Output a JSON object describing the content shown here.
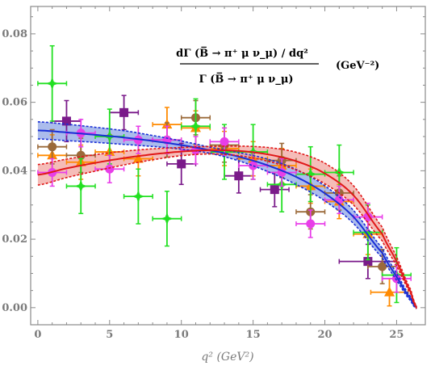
{
  "chart_data": {
    "type": "scatter",
    "title": "",
    "annotation": {
      "numerator": "dΓ (B̅ → π⁺ μ ν_μ) / dq²",
      "denominator": "Γ (B̅ → π⁺ μ ν_μ)",
      "unit": "(GeV⁻²)"
    },
    "xlabel": "q²  (GeV²)",
    "ylabel": "",
    "xlim": [
      -0.5,
      27.0
    ],
    "ylim": [
      -0.005,
      0.088
    ],
    "xticks": [
      "0",
      "5",
      "10",
      "15",
      "20",
      "25"
    ],
    "yticks": [
      "0.00",
      "0.02",
      "0.04",
      "0.06",
      "0.08"
    ],
    "colors": {
      "blue": "#1a2fd6",
      "blue_band": "#8fa6e6",
      "red": "#e01818",
      "red_band": "#f2a6a0",
      "purple": "#7a1a8a",
      "orange": "#ff8a00",
      "green": "#22e022",
      "magenta": "#e83ee8",
      "brown": "#9b6a3a"
    },
    "curves": [
      {
        "color": "blue",
        "x": [
          0,
          2,
          4,
          6,
          8,
          10,
          12,
          14,
          16,
          18,
          20,
          22,
          24,
          25,
          26,
          26.4
        ],
        "y": [
          0.0518,
          0.0512,
          0.0505,
          0.0497,
          0.0487,
          0.0475,
          0.046,
          0.0441,
          0.0416,
          0.0382,
          0.0334,
          0.0265,
          0.016,
          0.009,
          0.0025,
          0.0
        ],
        "band": [
          0.0025,
          0.0024,
          0.0022,
          0.002,
          0.0016,
          0.0012,
          0.0009,
          0.0012,
          0.0018,
          0.0022,
          0.0022,
          0.0019,
          0.0014,
          0.001,
          0.0006,
          0.0003
        ]
      },
      {
        "color": "red",
        "x": [
          0,
          2,
          4,
          6,
          8,
          10,
          12,
          14,
          16,
          18,
          20,
          22,
          24,
          25,
          26,
          26.4
        ],
        "y": [
          0.0388,
          0.0407,
          0.0423,
          0.0437,
          0.0448,
          0.0456,
          0.046,
          0.0458,
          0.0448,
          0.0428,
          0.0392,
          0.0328,
          0.0215,
          0.0135,
          0.0045,
          0.0
        ],
        "band": [
          0.003,
          0.0027,
          0.0024,
          0.002,
          0.0016,
          0.0012,
          0.0011,
          0.0014,
          0.002,
          0.0026,
          0.003,
          0.0028,
          0.002,
          0.0013,
          0.0006,
          0.0003
        ]
      }
    ],
    "series": [
      {
        "color": "purple",
        "marker": "square",
        "points": [
          {
            "x": 2,
            "y": 0.0545,
            "xe": 1,
            "ye": 0.006
          },
          {
            "x": 6,
            "y": 0.057,
            "xe": 1,
            "ye": 0.005
          },
          {
            "x": 10,
            "y": 0.042,
            "xe": 1,
            "ye": 0.006
          },
          {
            "x": 14,
            "y": 0.0385,
            "xe": 1,
            "ye": 0.005
          },
          {
            "x": 16.5,
            "y": 0.0345,
            "xe": 1,
            "ye": 0.005
          },
          {
            "x": 23,
            "y": 0.0135,
            "xe": 2,
            "ye": 0.005
          }
        ]
      },
      {
        "color": "orange",
        "marker": "triangle",
        "points": [
          {
            "x": 1,
            "y": 0.0445,
            "xe": 1,
            "ye": 0.006
          },
          {
            "x": 3,
            "y": 0.0425,
            "xe": 1,
            "ye": 0.005
          },
          {
            "x": 5,
            "y": 0.0455,
            "xe": 1,
            "ye": 0.005
          },
          {
            "x": 7,
            "y": 0.0435,
            "xe": 1,
            "ye": 0.005
          },
          {
            "x": 9,
            "y": 0.0535,
            "xe": 1,
            "ye": 0.005
          },
          {
            "x": 11,
            "y": 0.0525,
            "xe": 1,
            "ye": 0.005
          },
          {
            "x": 13,
            "y": 0.0465,
            "xe": 1,
            "ye": 0.005
          },
          {
            "x": 15,
            "y": 0.0435,
            "xe": 1,
            "ye": 0.005
          },
          {
            "x": 17,
            "y": 0.0415,
            "xe": 1,
            "ye": 0.005
          },
          {
            "x": 19,
            "y": 0.0355,
            "xe": 1,
            "ye": 0.005
          },
          {
            "x": 21,
            "y": 0.031,
            "xe": 1,
            "ye": 0.005
          },
          {
            "x": 23,
            "y": 0.0215,
            "xe": 1,
            "ye": 0.006
          },
          {
            "x": 24.5,
            "y": 0.0045,
            "xe": 1.3,
            "ye": 0.004
          }
        ]
      },
      {
        "color": "brown",
        "marker": "circle",
        "points": [
          {
            "x": 1,
            "y": 0.047,
            "xe": 1,
            "ye": 0.005
          },
          {
            "x": 3,
            "y": 0.0445,
            "xe": 1,
            "ye": 0.005
          },
          {
            "x": 9,
            "y": 0.049,
            "xe": 1,
            "ye": 0.005
          },
          {
            "x": 11,
            "y": 0.0555,
            "xe": 1,
            "ye": 0.005
          },
          {
            "x": 13,
            "y": 0.0475,
            "xe": 1,
            "ye": 0.005
          },
          {
            "x": 17,
            "y": 0.043,
            "xe": 1,
            "ye": 0.005
          },
          {
            "x": 19,
            "y": 0.028,
            "xe": 1,
            "ye": 0.005
          },
          {
            "x": 21,
            "y": 0.0335,
            "xe": 1,
            "ye": 0.005
          },
          {
            "x": 24,
            "y": 0.012,
            "xe": 1,
            "ye": 0.005
          }
        ]
      },
      {
        "color": "green",
        "marker": "star",
        "points": [
          {
            "x": 1,
            "y": 0.0655,
            "xe": 1,
            "ye": 0.011
          },
          {
            "x": 3,
            "y": 0.0355,
            "xe": 1,
            "ye": 0.008
          },
          {
            "x": 5,
            "y": 0.05,
            "xe": 1,
            "ye": 0.008
          },
          {
            "x": 7,
            "y": 0.0325,
            "xe": 1,
            "ye": 0.008
          },
          {
            "x": 9,
            "y": 0.026,
            "xe": 1,
            "ye": 0.008
          },
          {
            "x": 11,
            "y": 0.053,
            "xe": 1,
            "ye": 0.008
          },
          {
            "x": 13,
            "y": 0.0455,
            "xe": 1,
            "ye": 0.008
          },
          {
            "x": 15,
            "y": 0.0455,
            "xe": 1,
            "ye": 0.008
          },
          {
            "x": 17,
            "y": 0.036,
            "xe": 1,
            "ye": 0.008
          },
          {
            "x": 19,
            "y": 0.039,
            "xe": 1,
            "ye": 0.008
          },
          {
            "x": 21,
            "y": 0.0395,
            "xe": 1,
            "ye": 0.008
          },
          {
            "x": 23,
            "y": 0.022,
            "xe": 1,
            "ye": 0.008
          },
          {
            "x": 25,
            "y": 0.0095,
            "xe": 1,
            "ye": 0.008
          }
        ]
      },
      {
        "color": "magenta",
        "marker": "circle",
        "points": [
          {
            "x": 1,
            "y": 0.0395,
            "xe": 1,
            "ye": 0.004
          },
          {
            "x": 3,
            "y": 0.051,
            "xe": 1,
            "ye": 0.004
          },
          {
            "x": 5,
            "y": 0.0405,
            "xe": 1,
            "ye": 0.004
          },
          {
            "x": 7,
            "y": 0.049,
            "xe": 1,
            "ye": 0.004
          },
          {
            "x": 9,
            "y": 0.049,
            "xe": 1,
            "ye": 0.004
          },
          {
            "x": 11,
            "y": 0.046,
            "xe": 1,
            "ye": 0.004
          },
          {
            "x": 13,
            "y": 0.0485,
            "xe": 1,
            "ye": 0.004
          },
          {
            "x": 15,
            "y": 0.0415,
            "xe": 1,
            "ye": 0.004
          },
          {
            "x": 17,
            "y": 0.0395,
            "xe": 1,
            "ye": 0.004
          },
          {
            "x": 19,
            "y": 0.0245,
            "xe": 1,
            "ye": 0.004
          },
          {
            "x": 21,
            "y": 0.0315,
            "xe": 1,
            "ye": 0.004
          },
          {
            "x": 23,
            "y": 0.0265,
            "xe": 1,
            "ye": 0.004
          },
          {
            "x": 25,
            "y": 0.0085,
            "xe": 1,
            "ye": 0.004
          }
        ]
      }
    ]
  }
}
